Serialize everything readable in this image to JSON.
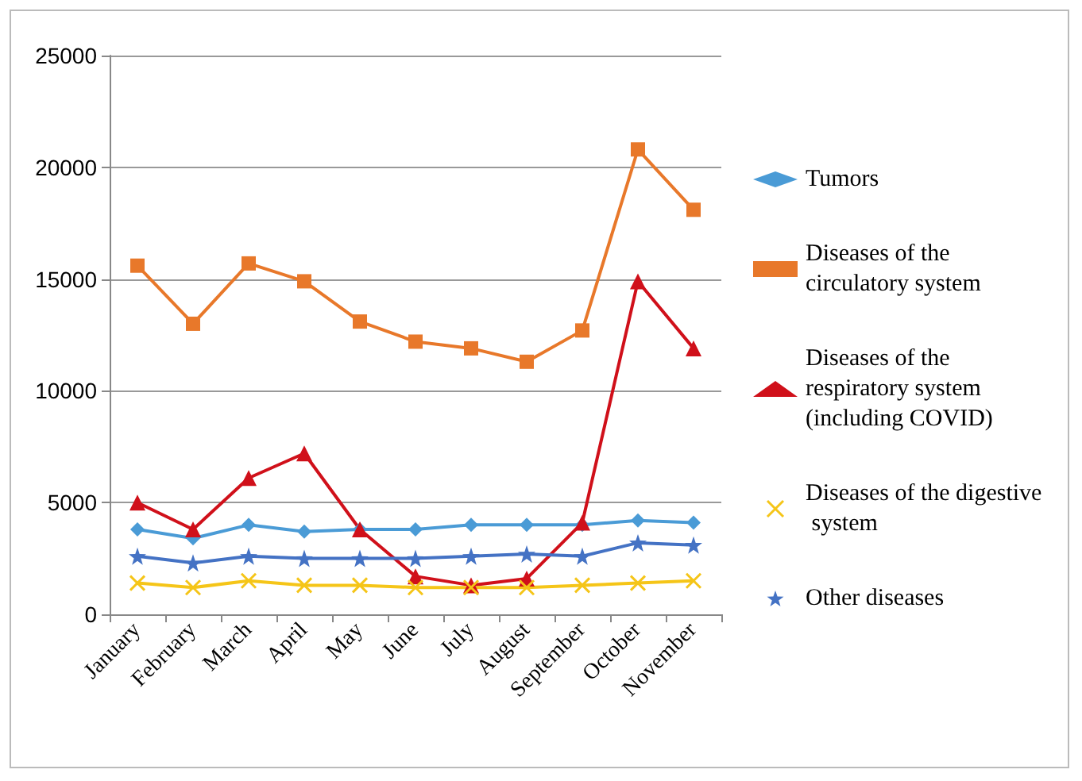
{
  "chart_data": {
    "type": "line",
    "categories": [
      "January",
      "February",
      "March",
      "April",
      "May",
      "June",
      "July",
      "August",
      "September",
      "October",
      "November"
    ],
    "series": [
      {
        "name": "Tumors",
        "color": "#4a9bd6",
        "marker": "diamond",
        "values": [
          3800,
          3400,
          4000,
          3700,
          3800,
          3800,
          4000,
          4000,
          4000,
          4200,
          4100
        ]
      },
      {
        "name": "Diseases of the circulatory system",
        "color": "#e8782a",
        "marker": "square",
        "values": [
          15600,
          13000,
          15700,
          14900,
          13100,
          12200,
          11900,
          11300,
          12700,
          20800,
          18100
        ]
      },
      {
        "name": "Diseases of the respiratory system (including COVID)",
        "color": "#d0101a",
        "marker": "triangle",
        "values": [
          5000,
          3800,
          6100,
          7200,
          3800,
          1700,
          1300,
          1600,
          4100,
          14900,
          11900
        ]
      },
      {
        "name": "Diseases of the digestive system",
        "color": "#f5c518",
        "marker": "cross",
        "values": [
          1400,
          1200,
          1500,
          1300,
          1300,
          1200,
          1200,
          1200,
          1300,
          1400,
          1500
        ]
      },
      {
        "name": "Other diseases",
        "color": "#4472c4",
        "marker": "star",
        "values": [
          2600,
          2300,
          2600,
          2500,
          2500,
          2500,
          2600,
          2700,
          2600,
          3200,
          3100
        ]
      }
    ],
    "ylim": [
      0,
      25000
    ],
    "yticks": [
      0,
      5000,
      10000,
      15000,
      20000,
      25000
    ],
    "grid": "y",
    "legend": "right"
  }
}
